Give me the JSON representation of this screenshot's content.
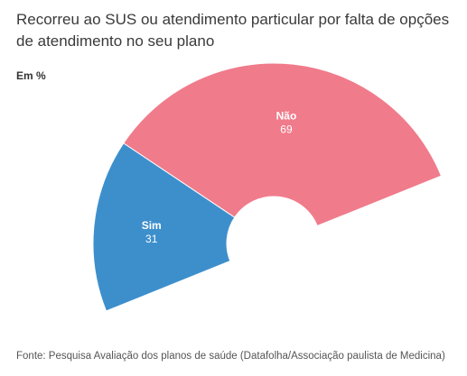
{
  "title": "Recorreu ao SUS ou atendimento particular por falta de opções de atendimento no seu plano",
  "unit": "Em %",
  "source": "Fonte: Pesquisa Avaliação dos planos de saúde (Datafolha/Associação paulista de Medicina)",
  "chart_data": {
    "type": "pie",
    "variant": "half-donut (semicircle)",
    "title": "Recorreu ao SUS ou atendimento particular por falta de opções de atendimento no seu plano",
    "unit": "Em %",
    "slices": [
      {
        "label": "Sim",
        "value": 31,
        "color": "#3d8fcc"
      },
      {
        "label": "Não",
        "value": 69,
        "color": "#f07b8b"
      }
    ]
  }
}
